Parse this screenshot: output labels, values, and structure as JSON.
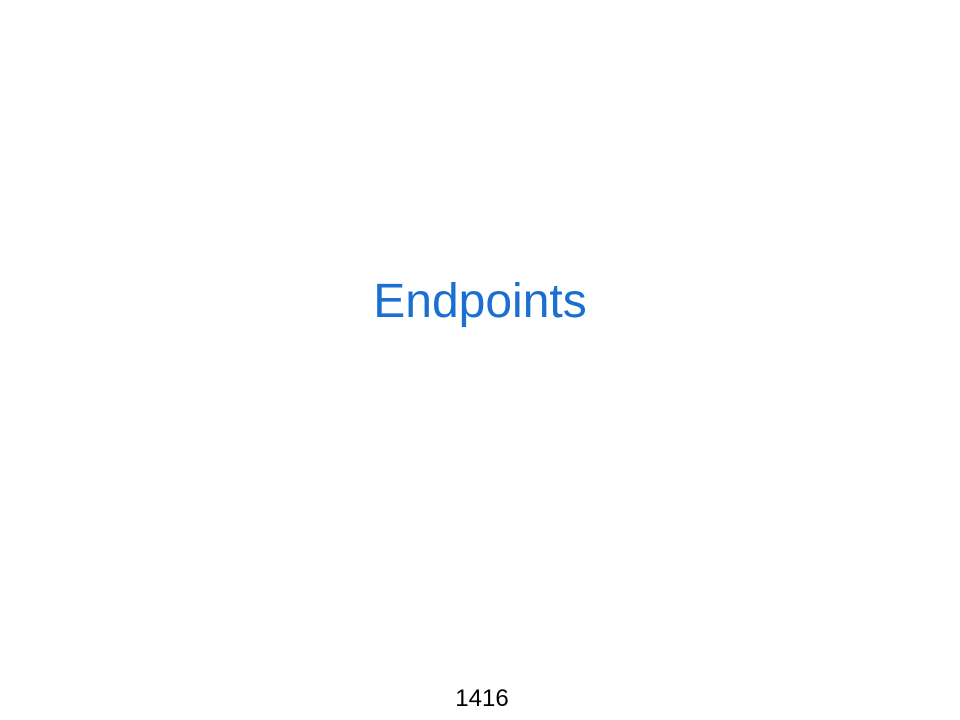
{
  "slide": {
    "title": "Endpoints",
    "slide_number": "1416",
    "colors": {
      "background": "#ffffff",
      "title": "#1a6fd1",
      "slide_number": "#000000"
    }
  }
}
